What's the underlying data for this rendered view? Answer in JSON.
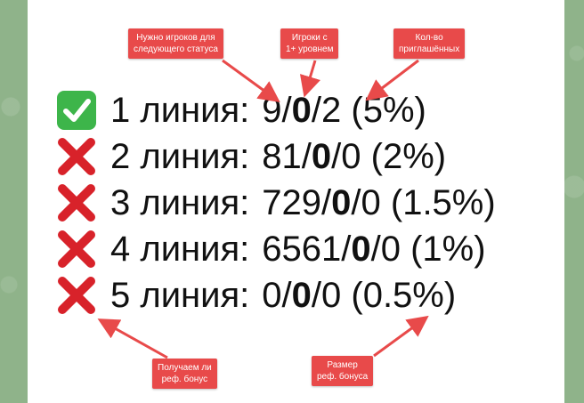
{
  "colors": {
    "background": "#8fb38a",
    "card": "#ffffff",
    "tag": "#e84a4a",
    "arrow": "#e84a4a",
    "check": "#3db54a",
    "cross": "#d8222a"
  },
  "annotations": {
    "players_needed": [
      "Нужно игроков для",
      "следующего статуса"
    ],
    "players_level": [
      "Игроки с",
      "1+ уровнем"
    ],
    "invited": [
      "Кол-во",
      "приглашённых"
    ],
    "receive_bonus": [
      "Получаем ли",
      "реф. бонус"
    ],
    "bonus_size": [
      "Размер",
      "реф. бонуса"
    ]
  },
  "lines": [
    {
      "icon": "check-icon",
      "label": "1 линия:",
      "needed": "9",
      "level": "0",
      "invited": "2",
      "percent": "(5%)"
    },
    {
      "icon": "cross-icon",
      "label": "2 линия:",
      "needed": "81",
      "level": "0",
      "invited": "0",
      "percent": "(2%)"
    },
    {
      "icon": "cross-icon",
      "label": "3 линия:",
      "needed": "729",
      "level": "0",
      "invited": "0",
      "percent": "(1.5%)"
    },
    {
      "icon": "cross-icon",
      "label": "4 линия:",
      "needed": "6561",
      "level": "0",
      "invited": "0",
      "percent": "(1%)"
    },
    {
      "icon": "cross-icon",
      "label": "5 линия:",
      "needed": "0",
      "level": "0",
      "invited": "0",
      "percent": "(0.5%)"
    }
  ]
}
